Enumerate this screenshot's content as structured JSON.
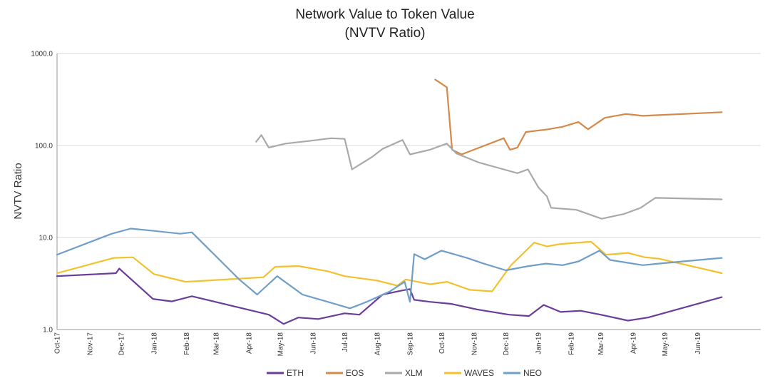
{
  "chart_data": {
    "type": "line",
    "title": "Network Value to Token Value",
    "subtitle": "(NVTV Ratio)",
    "ylabel": "NVTV Ratio",
    "xlabel": "",
    "y_scale": "log",
    "ylim": [
      1.0,
      1000.0
    ],
    "y_ticks": [
      "1.0",
      "10.0",
      "100.0",
      "1000.0"
    ],
    "xlim": [
      "2017-10-01",
      "2019-07-31"
    ],
    "x_ticks": [
      {
        "label": "Oct-17",
        "date": "2017-10-01"
      },
      {
        "label": "Nov-17",
        "date": "2017-11-01"
      },
      {
        "label": "Dec-17",
        "date": "2017-12-01"
      },
      {
        "label": "Jan-18",
        "date": "2018-01-01"
      },
      {
        "label": "Feb-18",
        "date": "2018-02-01"
      },
      {
        "label": "Mar-18",
        "date": "2018-03-01"
      },
      {
        "label": "Apr-18",
        "date": "2018-04-01"
      },
      {
        "label": "May-18",
        "date": "2018-05-01"
      },
      {
        "label": "Jun-18",
        "date": "2018-06-01"
      },
      {
        "label": "Jul-18",
        "date": "2018-07-01"
      },
      {
        "label": "Aug-18",
        "date": "2018-08-01"
      },
      {
        "label": "Sep-18",
        "date": "2018-09-01"
      },
      {
        "label": "Oct-18",
        "date": "2018-10-01"
      },
      {
        "label": "Nov-18",
        "date": "2018-11-01"
      },
      {
        "label": "Dec-18",
        "date": "2018-12-01"
      },
      {
        "label": "Jan-19",
        "date": "2019-01-01"
      },
      {
        "label": "Feb-19",
        "date": "2019-02-01"
      },
      {
        "label": "Mar-19",
        "date": "2019-03-01"
      },
      {
        "label": "Apr-19",
        "date": "2019-04-01"
      },
      {
        "label": "May-19",
        "date": "2019-05-01"
      },
      {
        "label": "Jun-19",
        "date": "2019-06-01"
      }
    ],
    "grid": "horizontal",
    "legend_position": "bottom",
    "series": [
      {
        "name": "ETH",
        "color": "#6a3d9a",
        "points": [
          [
            "2017-10-01",
            3.8
          ],
          [
            "2017-11-26",
            4.1
          ],
          [
            "2017-11-29",
            4.6
          ],
          [
            "2017-12-31",
            2.15
          ],
          [
            "2018-01-18",
            2.02
          ],
          [
            "2018-02-06",
            2.3
          ],
          [
            "2018-04-20",
            1.45
          ],
          [
            "2018-05-04",
            1.15
          ],
          [
            "2018-05-18",
            1.35
          ],
          [
            "2018-06-06",
            1.3
          ],
          [
            "2018-07-01",
            1.5
          ],
          [
            "2018-07-15",
            1.45
          ],
          [
            "2018-08-06",
            2.4
          ],
          [
            "2018-08-24",
            2.65
          ],
          [
            "2018-09-01",
            2.75
          ],
          [
            "2018-09-05",
            2.1
          ],
          [
            "2018-09-20",
            2.0
          ],
          [
            "2018-10-10",
            1.9
          ],
          [
            "2018-11-04",
            1.65
          ],
          [
            "2018-12-04",
            1.45
          ],
          [
            "2018-12-23",
            1.4
          ],
          [
            "2019-01-06",
            1.85
          ],
          [
            "2019-01-22",
            1.55
          ],
          [
            "2019-02-10",
            1.6
          ],
          [
            "2019-03-01",
            1.45
          ],
          [
            "2019-03-27",
            1.25
          ],
          [
            "2019-04-15",
            1.35
          ],
          [
            "2019-06-24",
            2.25
          ]
        ]
      },
      {
        "name": "EOS",
        "color": "#d4894a",
        "points": [
          [
            "2018-09-25",
            520
          ],
          [
            "2018-10-06",
            430
          ],
          [
            "2018-10-11",
            90
          ],
          [
            "2018-10-20",
            80
          ],
          [
            "2018-11-06",
            95
          ],
          [
            "2018-11-29",
            120
          ],
          [
            "2018-12-05",
            90
          ],
          [
            "2018-12-12",
            95
          ],
          [
            "2018-12-20",
            140
          ],
          [
            "2019-01-10",
            150
          ],
          [
            "2019-01-24",
            160
          ],
          [
            "2019-02-08",
            180
          ],
          [
            "2019-02-17",
            150
          ],
          [
            "2019-03-05",
            200
          ],
          [
            "2019-03-25",
            220
          ],
          [
            "2019-04-10",
            210
          ],
          [
            "2019-06-24",
            230
          ]
        ]
      },
      {
        "name": "XLM",
        "color": "#a9a9a9",
        "points": [
          [
            "2018-04-08",
            110
          ],
          [
            "2018-04-13",
            130
          ],
          [
            "2018-04-20",
            95
          ],
          [
            "2018-05-06",
            105
          ],
          [
            "2018-05-28",
            112
          ],
          [
            "2018-06-18",
            120
          ],
          [
            "2018-07-01",
            118
          ],
          [
            "2018-07-08",
            55
          ],
          [
            "2018-07-27",
            75
          ],
          [
            "2018-08-06",
            92
          ],
          [
            "2018-08-25",
            115
          ],
          [
            "2018-09-01",
            80
          ],
          [
            "2018-09-20",
            90
          ],
          [
            "2018-10-06",
            105
          ],
          [
            "2018-10-15",
            82
          ],
          [
            "2018-11-06",
            65
          ],
          [
            "2018-11-29",
            55
          ],
          [
            "2018-12-12",
            50
          ],
          [
            "2018-12-22",
            55
          ],
          [
            "2019-01-01",
            35
          ],
          [
            "2019-01-09",
            28
          ],
          [
            "2019-01-13",
            21
          ],
          [
            "2019-02-06",
            20
          ],
          [
            "2019-03-02",
            16
          ],
          [
            "2019-03-23",
            18
          ],
          [
            "2019-04-08",
            21
          ],
          [
            "2019-04-22",
            27
          ],
          [
            "2019-06-24",
            26
          ]
        ]
      },
      {
        "name": "WAVES",
        "color": "#f2c12e",
        "points": [
          [
            "2017-10-01",
            4.1
          ],
          [
            "2017-11-24",
            6.0
          ],
          [
            "2017-12-12",
            6.1
          ],
          [
            "2018-01-01",
            4.0
          ],
          [
            "2018-01-31",
            3.3
          ],
          [
            "2018-04-15",
            3.7
          ],
          [
            "2018-04-26",
            4.8
          ],
          [
            "2018-05-18",
            4.9
          ],
          [
            "2018-06-15",
            4.3
          ],
          [
            "2018-07-01",
            3.8
          ],
          [
            "2018-08-01",
            3.4
          ],
          [
            "2018-08-20",
            3.0
          ],
          [
            "2018-08-28",
            3.5
          ],
          [
            "2018-09-20",
            3.1
          ],
          [
            "2018-10-06",
            3.3
          ],
          [
            "2018-10-28",
            2.7
          ],
          [
            "2018-11-18",
            2.6
          ],
          [
            "2018-12-06",
            5.0
          ],
          [
            "2018-12-28",
            8.8
          ],
          [
            "2019-01-09",
            8.0
          ],
          [
            "2019-01-22",
            8.5
          ],
          [
            "2019-02-20",
            9.0
          ],
          [
            "2019-03-06",
            6.5
          ],
          [
            "2019-03-27",
            6.8
          ],
          [
            "2019-04-12",
            6.1
          ],
          [
            "2019-04-25",
            5.9
          ],
          [
            "2019-06-24",
            4.1
          ]
        ]
      },
      {
        "name": "NEO",
        "color": "#6f9ec9",
        "points": [
          [
            "2017-10-01",
            6.5
          ],
          [
            "2017-11-22",
            11.0
          ],
          [
            "2017-12-10",
            12.5
          ],
          [
            "2018-01-01",
            11.8
          ],
          [
            "2018-01-26",
            11.0
          ],
          [
            "2018-02-06",
            11.4
          ],
          [
            "2018-03-23",
            3.5
          ],
          [
            "2018-04-09",
            2.4
          ],
          [
            "2018-04-28",
            3.8
          ],
          [
            "2018-05-22",
            2.4
          ],
          [
            "2018-06-15",
            2.0
          ],
          [
            "2018-07-06",
            1.7
          ],
          [
            "2018-07-22",
            2.0
          ],
          [
            "2018-08-13",
            2.6
          ],
          [
            "2018-08-27",
            3.3
          ],
          [
            "2018-09-01",
            2.0
          ],
          [
            "2018-09-05",
            6.6
          ],
          [
            "2018-09-15",
            5.8
          ],
          [
            "2018-10-01",
            7.2
          ],
          [
            "2018-10-25",
            6.0
          ],
          [
            "2018-11-10",
            5.2
          ],
          [
            "2018-12-01",
            4.4
          ],
          [
            "2018-12-23",
            4.9
          ],
          [
            "2019-01-08",
            5.2
          ],
          [
            "2019-01-24",
            5.0
          ],
          [
            "2019-02-08",
            5.5
          ],
          [
            "2019-02-28",
            7.2
          ],
          [
            "2019-03-10",
            5.7
          ],
          [
            "2019-04-10",
            5.0
          ],
          [
            "2019-04-25",
            5.2
          ],
          [
            "2019-06-24",
            6.0
          ]
        ]
      }
    ]
  }
}
